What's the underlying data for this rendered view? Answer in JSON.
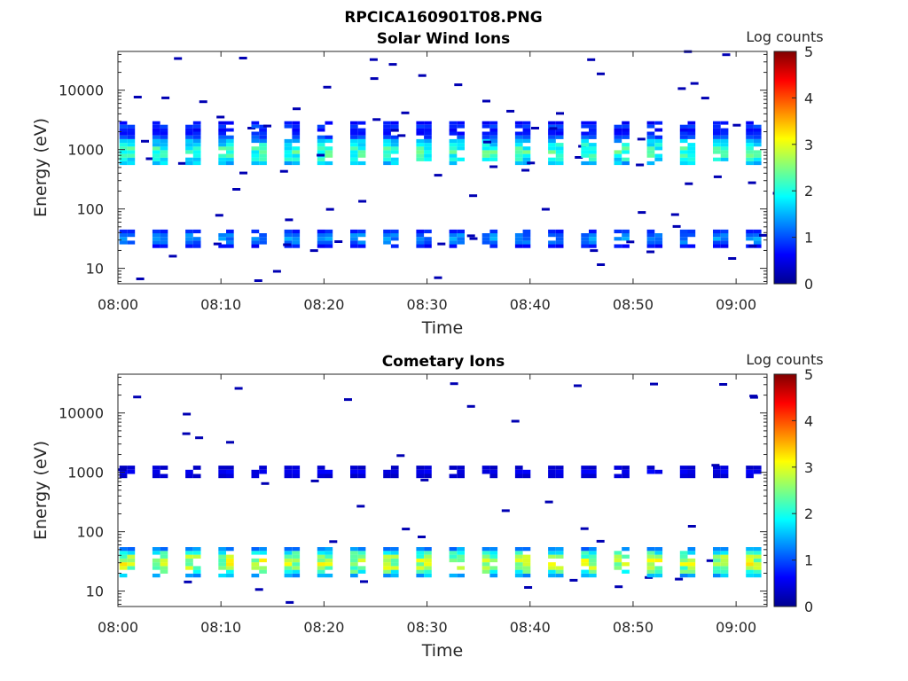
{
  "figure_title": "RPCICA160901T08.PNG",
  "colorbar": {
    "label": "Log counts",
    "min": 0,
    "max": 5,
    "ticks": [
      "0",
      "1",
      "2",
      "3",
      "4",
      "5"
    ],
    "colormap": "jet"
  },
  "chart_data": [
    {
      "type": "heatmap",
      "title": "Solar Wind Ions",
      "xlabel": "Time",
      "ylabel": "Energy (eV)",
      "xscale": "linear",
      "yscale": "log",
      "x_ticks": [
        "08:00",
        "08:10",
        "08:20",
        "08:30",
        "08:40",
        "08:50",
        "09:00"
      ],
      "y_ticks": [
        "10",
        "100",
        "1000",
        "10000"
      ],
      "xlim_minutes_after_0800": [
        0,
        63
      ],
      "ylim_eV": [
        5.5,
        45000
      ],
      "value_label": "Log counts",
      "clim": [
        0,
        5
      ],
      "scan_period_min": 3.2,
      "features": [
        {
          "description": "solar wind proton band",
          "energy_range_eV": [
            550,
            2000
          ],
          "peak_energy_eV": 900,
          "peak_log_counts": 2.3
        },
        {
          "description": "alpha / higher energy blobs",
          "energy_range_eV": [
            2000,
            3000
          ],
          "peak_log_counts": 1.0
        },
        {
          "description": "low energy band",
          "energy_range_eV": [
            22,
            45
          ],
          "peak_energy_eV": 32,
          "peak_log_counts": 1.4
        }
      ]
    },
    {
      "type": "heatmap",
      "title": "Cometary Ions",
      "xlabel": "Time",
      "ylabel": "Energy (eV)",
      "xscale": "linear",
      "yscale": "log",
      "x_ticks": [
        "08:00",
        "08:10",
        "08:20",
        "08:30",
        "08:40",
        "08:50",
        "09:00"
      ],
      "y_ticks": [
        "10",
        "100",
        "1000",
        "10000"
      ],
      "xlim_minutes_after_0800": [
        0,
        63
      ],
      "ylim_eV": [
        5.5,
        45000
      ],
      "value_label": "Log counts",
      "clim": [
        0,
        5
      ],
      "scan_period_min": 3.2,
      "features": [
        {
          "description": "low energy cometary ion band",
          "energy_range_eV": [
            17,
            55
          ],
          "peak_energy_eV": 30,
          "peak_log_counts": 3.0
        },
        {
          "description": "sparse counts near 1 keV",
          "energy_range_eV": [
            800,
            1300
          ],
          "peak_log_counts": 0.6
        }
      ]
    }
  ]
}
